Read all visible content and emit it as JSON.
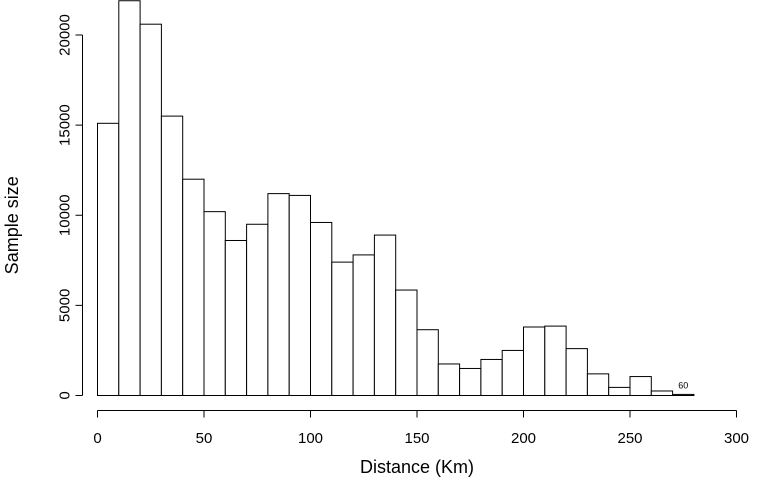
{
  "chart_data": {
    "type": "bar",
    "subtype": "histogram",
    "xlabel": "Distance (Km)",
    "ylabel": "Sample size",
    "xlim": [
      0,
      300
    ],
    "ylim": [
      0,
      22000
    ],
    "bin_width": 10,
    "x_ticks": [
      0,
      50,
      100,
      150,
      200,
      250,
      300
    ],
    "y_ticks": [
      0,
      5000,
      10000,
      15000,
      20000
    ],
    "bin_starts": [
      0,
      10,
      20,
      30,
      40,
      50,
      60,
      70,
      80,
      90,
      100,
      110,
      120,
      130,
      140,
      150,
      160,
      170,
      180,
      190,
      200,
      210,
      220,
      230,
      240,
      250,
      260,
      270
    ],
    "values": [
      15100,
      21900,
      20600,
      15500,
      12000,
      10200,
      8600,
      9500,
      11200,
      11100,
      9600,
      7400,
      7800,
      8900,
      5850,
      3650,
      1750,
      1500,
      2000,
      2500,
      3800,
      3850,
      2600,
      1200,
      450,
      1050,
      250,
      60
    ],
    "annotations": [
      {
        "text": "60",
        "x": 275,
        "y": 60
      }
    ],
    "grid": false,
    "legend": "none"
  }
}
